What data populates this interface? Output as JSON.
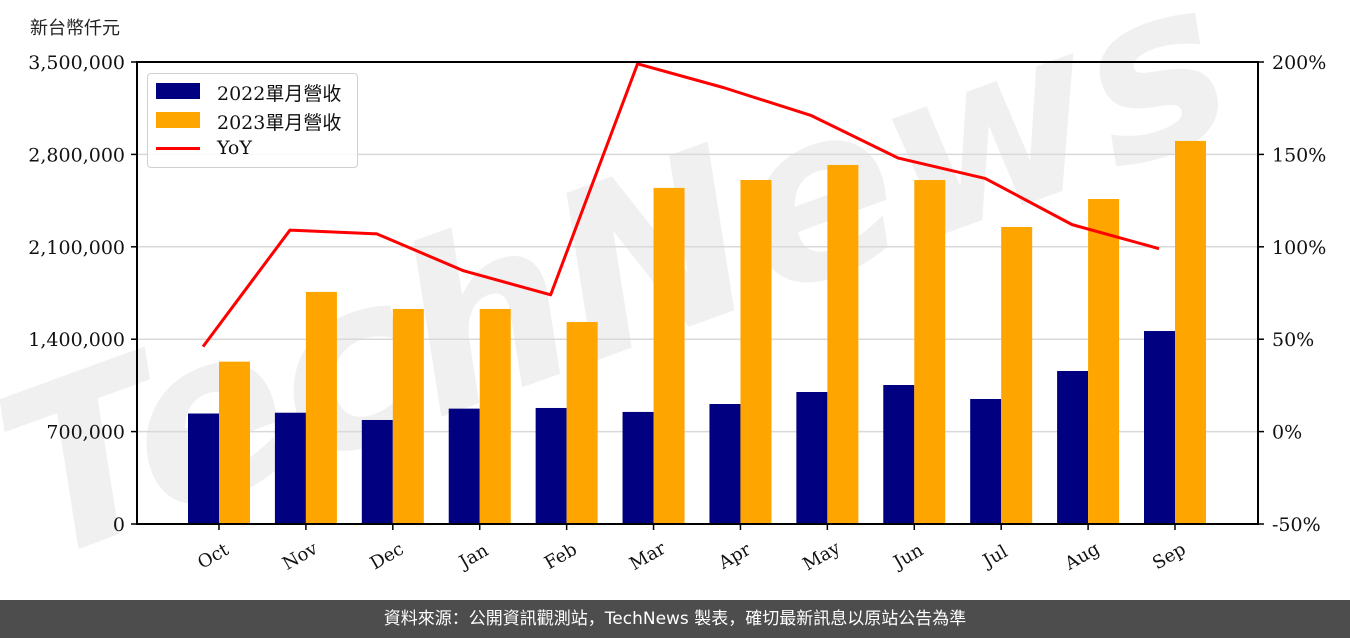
{
  "header": {
    "unit_label": "新台幣仟元"
  },
  "footer": {
    "text": "資料來源：公開資訊觀測站，TechNews 製表，確切最新訊息以原站公告為準"
  },
  "watermark": {
    "text": "TechNews"
  },
  "colors": {
    "series_2022": "#000080",
    "series_2023": "#ffa500",
    "yoy": "#ff0000",
    "grid": "#d9d9d9",
    "axis": "#000000",
    "footer_bg": "#4d4d4d"
  },
  "legend": {
    "items": [
      {
        "label": "2022單月營收",
        "type": "patch",
        "color": "#000080"
      },
      {
        "label": "2023單月營收",
        "type": "patch",
        "color": "#ffa500"
      },
      {
        "label": "YoY",
        "type": "line",
        "color": "#ff0000"
      }
    ]
  },
  "chart_data": {
    "type": "bar",
    "title": "",
    "xlabel": "",
    "ylabel": "新台幣仟元",
    "y2label": "",
    "categories": [
      "Oct",
      "Nov",
      "Dec",
      "Jan",
      "Feb",
      "Mar",
      "Apr",
      "May",
      "Jun",
      "Jul",
      "Aug",
      "Sep"
    ],
    "series": [
      {
        "name": "2022單月營收",
        "type": "bar",
        "axis": "left",
        "color": "#000080",
        "values": [
          837000,
          843000,
          788000,
          874000,
          879000,
          849000,
          909000,
          1000000,
          1053000,
          947000,
          1159000,
          1462000
        ]
      },
      {
        "name": "2023單月營收",
        "type": "bar",
        "axis": "left",
        "color": "#ffa500",
        "values": [
          1230000,
          1758000,
          1629000,
          1629000,
          1530000,
          2546000,
          2606000,
          2720000,
          2606000,
          2250000,
          2462000,
          2902000
        ]
      },
      {
        "name": "YoY",
        "type": "line",
        "axis": "right",
        "unit": "%",
        "color": "#ff0000",
        "values": [
          46,
          109,
          107,
          87,
          74,
          199,
          186,
          171,
          148,
          137,
          112,
          99
        ]
      }
    ],
    "ylim": [
      0,
      3500000
    ],
    "yticks": [
      0,
      700000,
      1400000,
      2100000,
      2800000,
      3500000
    ],
    "ytick_labels": [
      "0",
      "700,000",
      "1,400,000",
      "2,100,000",
      "2,800,000",
      "3,500,000"
    ],
    "y2lim": [
      -50,
      200
    ],
    "y2ticks": [
      -50,
      0,
      50,
      100,
      150,
      200
    ],
    "y2tick_labels": [
      "-50%",
      "0%",
      "50%",
      "100%",
      "150%",
      "200%"
    ],
    "grid": "horizontal (right axis ticks)",
    "legend_position": "upper left",
    "xtick_rotation": 30
  }
}
